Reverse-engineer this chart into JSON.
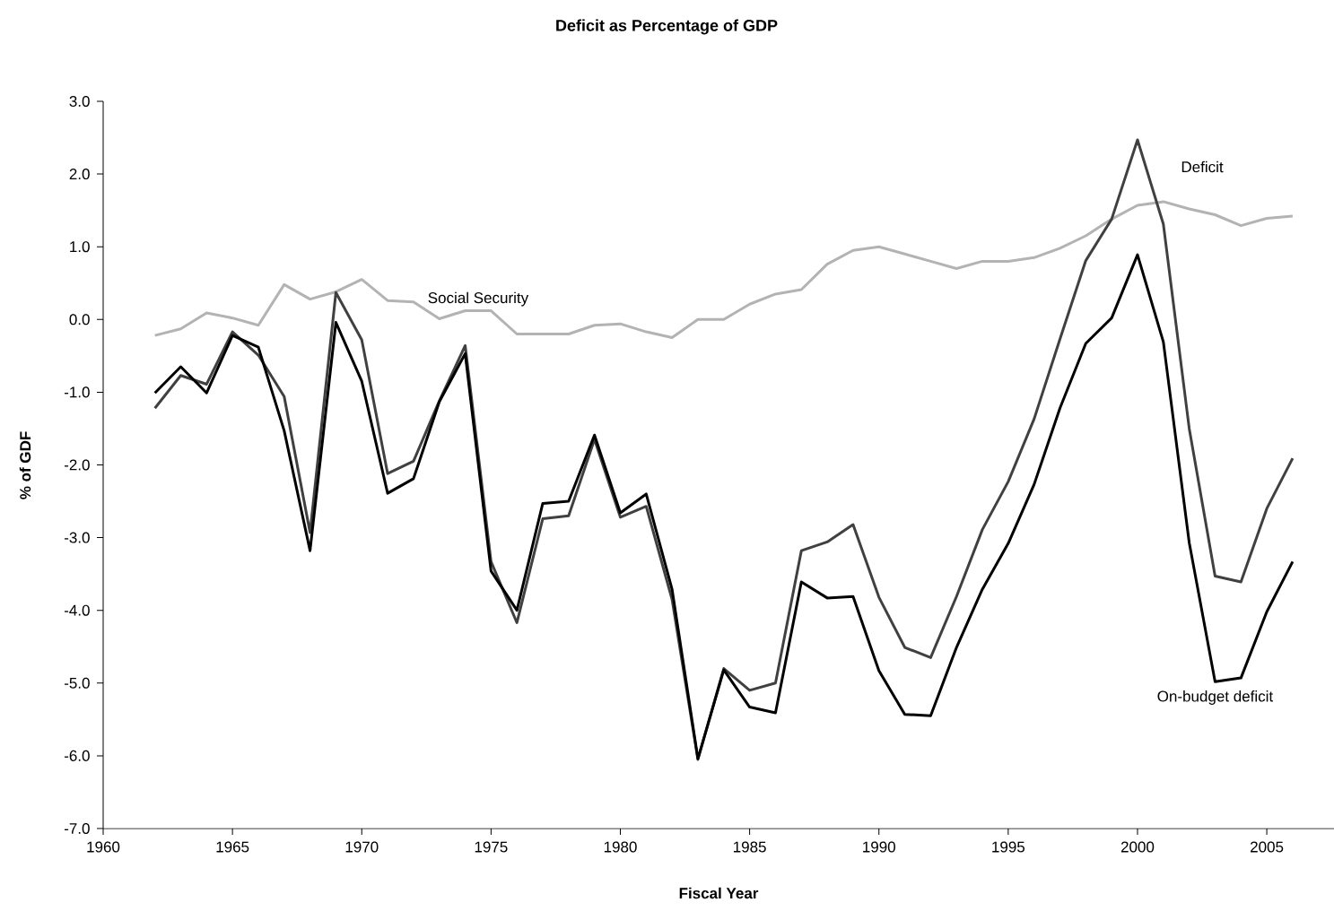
{
  "chart_data": {
    "type": "line",
    "title": "Deficit as Percentage of GDP",
    "xlabel": "Fiscal Year",
    "ylabel": "% of GDF",
    "x": [
      1962,
      1963,
      1964,
      1965,
      1966,
      1967,
      1968,
      1969,
      1970,
      1971,
      1972,
      1973,
      1974,
      1975,
      1976,
      1977,
      1978,
      1979,
      1980,
      1981,
      1982,
      1983,
      1984,
      1985,
      1986,
      1987,
      1988,
      1989,
      1990,
      1991,
      1992,
      1993,
      1994,
      1995,
      1996,
      1997,
      1998,
      1999,
      2000,
      2001,
      2002,
      2003,
      2004,
      2005,
      2006
    ],
    "series": [
      {
        "name": "Social Security",
        "color": "#b3b3b3",
        "values": [
          -0.22,
          -0.13,
          0.09,
          0.02,
          -0.08,
          0.48,
          0.28,
          0.38,
          0.55,
          0.26,
          0.24,
          0.01,
          0.12,
          0.12,
          -0.2,
          -0.2,
          -0.2,
          -0.08,
          -0.06,
          -0.17,
          -0.25,
          0.0,
          0.0,
          0.21,
          0.35,
          0.41,
          0.76,
          0.95,
          1.0,
          0.9,
          0.8,
          0.7,
          0.8,
          0.8,
          0.85,
          0.98,
          1.15,
          1.38,
          1.57,
          1.62,
          1.52,
          1.44,
          1.29,
          1.39,
          1.42
        ]
      },
      {
        "name": "Deficit",
        "color": "#404040",
        "values": [
          -1.22,
          -0.77,
          -0.89,
          -0.17,
          -0.49,
          -1.06,
          -2.93,
          0.37,
          -0.28,
          -2.12,
          -1.95,
          -1.12,
          -0.36,
          -3.33,
          -4.17,
          -2.74,
          -2.7,
          -1.65,
          -2.72,
          -2.57,
          -3.85,
          -6.05,
          -4.8,
          -5.1,
          -5.0,
          -3.18,
          -3.06,
          -2.82,
          -3.82,
          -4.51,
          -4.65,
          -3.81,
          -2.89,
          -2.23,
          -1.37,
          -0.27,
          0.81,
          1.38,
          2.47,
          1.31,
          -1.5,
          -3.53,
          -3.61,
          -2.6,
          -1.91
        ]
      },
      {
        "name": "On-budget deficit",
        "color": "#000000",
        "values": [
          -1.01,
          -0.65,
          -1.01,
          -0.22,
          -0.38,
          -1.53,
          -3.18,
          -0.04,
          -0.85,
          -2.39,
          -2.19,
          -1.13,
          -0.47,
          -3.46,
          -4.0,
          -2.53,
          -2.5,
          -1.59,
          -2.66,
          -2.4,
          -3.71,
          -6.04,
          -4.82,
          -5.33,
          -5.41,
          -3.61,
          -3.83,
          -3.81,
          -4.83,
          -5.43,
          -5.45,
          -4.51,
          -3.71,
          -3.08,
          -2.27,
          -1.22,
          -0.33,
          0.02,
          0.89,
          -0.31,
          -3.07,
          -4.98,
          -4.93,
          -4.02,
          -3.33
        ]
      }
    ],
    "xlim": [
      1960,
      2007.6
    ],
    "ylim": [
      -7,
      3
    ],
    "xticks": [
      1960,
      1965,
      1970,
      1975,
      1980,
      1985,
      1990,
      1995,
      2000,
      2005
    ],
    "yticks": [
      {
        "value": -7,
        "label": "-7.0"
      },
      {
        "value": -6,
        "label": "-6.0"
      },
      {
        "value": -5,
        "label": "-5.0"
      },
      {
        "value": -4,
        "label": "-4.0"
      },
      {
        "value": -3,
        "label": "-3.0"
      },
      {
        "value": -2,
        "label": "-2.0"
      },
      {
        "value": -1,
        "label": "-1.0"
      },
      {
        "value": 0,
        "label": "0.0"
      },
      {
        "value": 1,
        "label": "1.0"
      },
      {
        "value": 2,
        "label": "2.0"
      },
      {
        "value": 3,
        "label": "3.0"
      }
    ],
    "grid": false,
    "legend": false,
    "marker": "none",
    "line_style": "solid"
  }
}
